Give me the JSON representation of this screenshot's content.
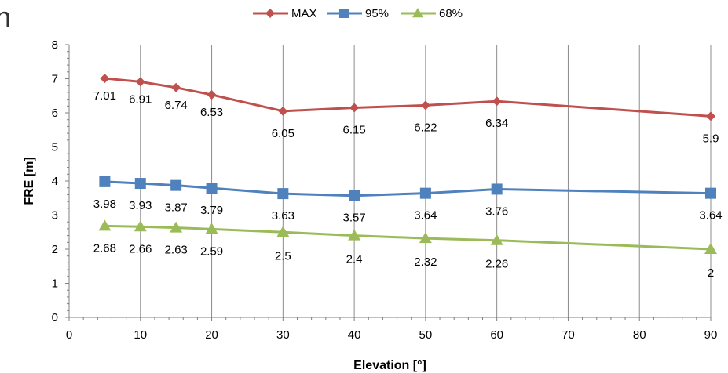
{
  "crop_glyph": "n",
  "chart_data": {
    "type": "line",
    "title": "",
    "xlabel": "Elevation [°]",
    "ylabel": "FRE [m]",
    "xlim": [
      0,
      90
    ],
    "ylim": [
      0,
      8
    ],
    "x_ticks": [
      0,
      10,
      20,
      30,
      40,
      50,
      60,
      70,
      80,
      90
    ],
    "y_ticks": [
      0,
      1,
      2,
      3,
      4,
      5,
      6,
      7,
      8
    ],
    "grid": "vertical",
    "legend_position": "top",
    "x": [
      5,
      10,
      15,
      20,
      30,
      40,
      50,
      60,
      90
    ],
    "series": [
      {
        "name": "MAX",
        "color": "#c0504d",
        "marker": "diamond",
        "values": [
          7.01,
          6.91,
          6.74,
          6.53,
          6.05,
          6.15,
          6.22,
          6.34,
          5.9
        ],
        "labels": [
          "7.01",
          "6.91",
          "6.74",
          "6.53",
          "6.05",
          "6.15",
          "6.22",
          "6.34",
          "5.9"
        ]
      },
      {
        "name": "95%",
        "color": "#4f81bd",
        "marker": "square",
        "values": [
          3.98,
          3.93,
          3.87,
          3.79,
          3.63,
          3.57,
          3.64,
          3.76,
          3.64
        ],
        "labels": [
          "3.98",
          "3.93",
          "3.87",
          "3.79",
          "3.63",
          "3.57",
          "3.64",
          "3.76",
          "3.64"
        ]
      },
      {
        "name": "68%",
        "color": "#9bbb59",
        "marker": "triangle",
        "values": [
          2.68,
          2.66,
          2.63,
          2.59,
          2.5,
          2.4,
          2.32,
          2.26,
          2
        ],
        "labels": [
          "2.68",
          "2.66",
          "2.63",
          "2.59",
          "2.5",
          "2.4",
          "2.32",
          "2.26",
          "2"
        ]
      }
    ]
  }
}
